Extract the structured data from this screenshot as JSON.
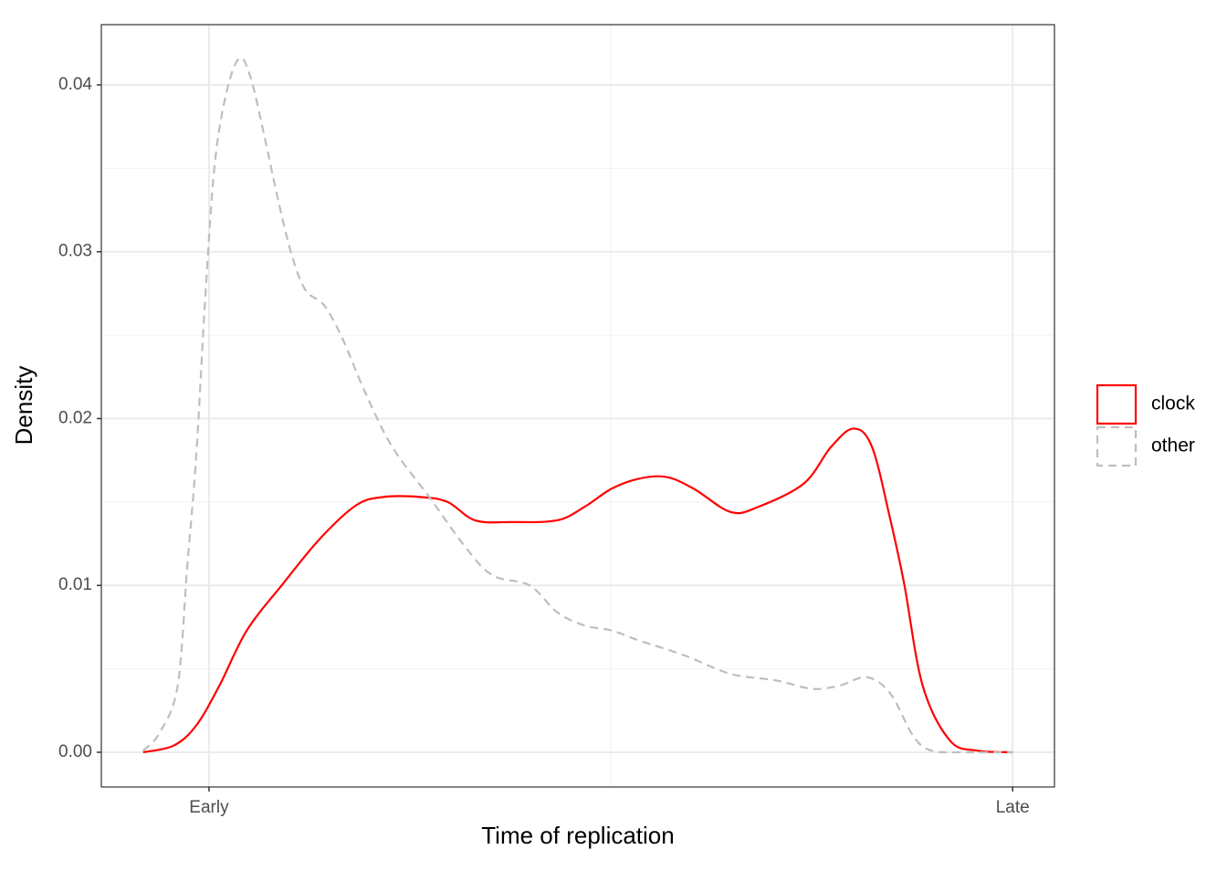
{
  "chart_data": {
    "type": "line",
    "xlabel": "Time of replication",
    "ylabel": "Density",
    "xlim": [
      -0.134,
      1.052
    ],
    "ylim": [
      -0.00208,
      0.04361
    ],
    "xticks": [
      {
        "value": 0,
        "label": "Early"
      },
      {
        "value": 1,
        "label": "Late"
      }
    ],
    "yticks": [
      {
        "value": 0,
        "label": "0.00"
      },
      {
        "value": 0.01,
        "label": "0.01"
      },
      {
        "value": 0.02,
        "label": "0.02"
      },
      {
        "value": 0.03,
        "label": "0.03"
      },
      {
        "value": 0.04,
        "label": "0.04"
      }
    ],
    "grid": true,
    "legend_position": "right",
    "series": [
      {
        "name": "clock",
        "color": "#ff0000",
        "linestyle": "solid",
        "x": [
          -0.082,
          -0.044,
          -0.016,
          0.013,
          0.047,
          0.092,
          0.138,
          0.183,
          0.217,
          0.263,
          0.297,
          0.331,
          0.376,
          0.433,
          0.467,
          0.501,
          0.535,
          0.569,
          0.603,
          0.649,
          0.683,
          0.74,
          0.774,
          0.802,
          0.825,
          0.848,
          0.865,
          0.888,
          0.922,
          0.956,
          1.0
        ],
        "values": [
          0,
          0.0004,
          0.0016,
          0.004,
          0.0073,
          0.0101,
          0.0128,
          0.0148,
          0.0153,
          0.0153,
          0.015,
          0.0139,
          0.0138,
          0.0139,
          0.0147,
          0.0158,
          0.0164,
          0.0165,
          0.0158,
          0.0144,
          0.0147,
          0.0161,
          0.0183,
          0.0194,
          0.0183,
          0.0139,
          0.0101,
          0.004,
          0.0007,
          0.0001,
          0
        ]
      },
      {
        "name": "other",
        "color": "#bebebe",
        "linestyle": "dashed",
        "x": [
          -0.082,
          -0.061,
          -0.039,
          -0.027,
          -0.016,
          -0.005,
          0.007,
          0.022,
          0.038,
          0.052,
          0.069,
          0.086,
          0.103,
          0.12,
          0.143,
          0.166,
          0.194,
          0.228,
          0.274,
          0.319,
          0.353,
          0.399,
          0.433,
          0.467,
          0.501,
          0.535,
          0.592,
          0.649,
          0.706,
          0.751,
          0.785,
          0.819,
          0.848,
          0.876,
          0.899,
          0.944,
          1.0
        ],
        "values": [
          0.0001,
          0.0012,
          0.004,
          0.0112,
          0.0177,
          0.027,
          0.0352,
          0.0396,
          0.0416,
          0.0404,
          0.0369,
          0.0331,
          0.0298,
          0.0277,
          0.0268,
          0.0248,
          0.0216,
          0.0183,
          0.0153,
          0.0123,
          0.0106,
          0.01,
          0.0084,
          0.0076,
          0.0073,
          0.0067,
          0.0058,
          0.0047,
          0.0043,
          0.0038,
          0.004,
          0.0045,
          0.0035,
          0.001,
          0.0001,
          0,
          0
        ]
      }
    ]
  }
}
